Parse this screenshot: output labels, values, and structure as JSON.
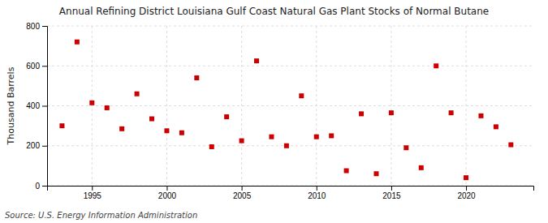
{
  "chart_data": {
    "type": "scatter",
    "title": "Annual Refining District Louisiana Gulf Coast Natural Gas Plant Stocks of Normal Butane",
    "ylabel": "Thousand Barrels",
    "source": "Source: U.S. Energy Information Administration",
    "x": [
      1993,
      1994,
      1995,
      1996,
      1997,
      1998,
      1999,
      2000,
      2001,
      2002,
      2003,
      2004,
      2005,
      2006,
      2007,
      2008,
      2009,
      2010,
      2011,
      2012,
      2013,
      2014,
      2015,
      2016,
      2017,
      2018,
      2019,
      2020,
      2021,
      2022,
      2023
    ],
    "values": [
      300,
      720,
      415,
      390,
      285,
      460,
      335,
      275,
      265,
      540,
      195,
      345,
      225,
      625,
      245,
      200,
      450,
      245,
      250,
      75,
      360,
      60,
      365,
      190,
      90,
      600,
      365,
      40,
      350,
      295,
      205
    ],
    "color": "#cc0000",
    "marker": "square",
    "grid": true,
    "xlim": [
      1992.0,
      2024.5
    ],
    "xticks": [
      1995,
      2000,
      2005,
      2010,
      2015,
      2020
    ],
    "ylim": [
      0,
      800
    ],
    "yticks": [
      0,
      200,
      400,
      600,
      800
    ]
  }
}
